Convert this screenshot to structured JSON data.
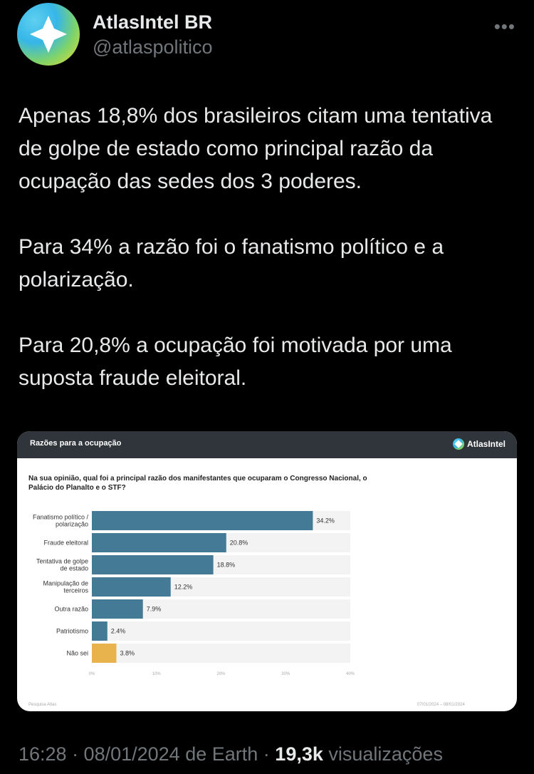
{
  "author": {
    "name": "AtlasIntel BR",
    "handle": "@atlaspolitico",
    "avatar_icon": "atlas-compass-logo-icon",
    "more_icon": "more-horizontal-icon",
    "more_label": "•••"
  },
  "tweet": {
    "paragraphs": [
      "Apenas 18,8% dos brasileiros citam uma tentativa de golpe de estado como principal razão da ocupação das sedes dos 3 poderes.",
      "Para 34% a razão foi o fanatismo político e a polarização.",
      "Para 20,8% a ocupação foi motivada por uma suposta fraude eleitoral."
    ]
  },
  "card": {
    "header_title": "Razões para a ocupação",
    "brand_name": "AtlasIntel",
    "question": "Na sua opinião, qual foi a principal razão dos manifestantes que ocuparam o Congresso Nacional, o Palácio do Planalto e o STF?",
    "footer_left": "Pesquisa Atlas",
    "footer_right": "07/01/2024 – 08/01/2024"
  },
  "chart_data": {
    "type": "bar",
    "orientation": "horizontal",
    "categories": [
      [
        "Fanatismo político /",
        "polarização"
      ],
      [
        "Fraude eleitoral"
      ],
      [
        "Tentativa de golpe",
        "de estado"
      ],
      [
        "Manipulação de",
        "terceiros"
      ],
      [
        "Outra razão"
      ],
      [
        "Patriotismo"
      ],
      [
        "Não sei"
      ]
    ],
    "values": [
      34.2,
      20.8,
      18.8,
      12.2,
      7.9,
      2.4,
      3.8
    ],
    "value_labels": [
      "34.2%",
      "20.8%",
      "18.8%",
      "12.2%",
      "7.9%",
      "2.4%",
      "3.8%"
    ],
    "bar_colors": [
      "#447a96",
      "#447a96",
      "#447a96",
      "#447a96",
      "#447a96",
      "#447a96",
      "#e8b34c"
    ],
    "xlim": [
      0,
      40
    ],
    "x_ticks": [
      0,
      10,
      20,
      30,
      40
    ],
    "x_tick_labels": [
      "0%",
      "10%",
      "20%",
      "30%",
      "40%"
    ],
    "grid": false
  },
  "meta": {
    "time_date": "16:28 · 08/01/2024",
    "source_prefix": " de ",
    "source": "Earth",
    "separator": " · ",
    "views_count": "19,3k",
    "views_label": " visualizações"
  }
}
